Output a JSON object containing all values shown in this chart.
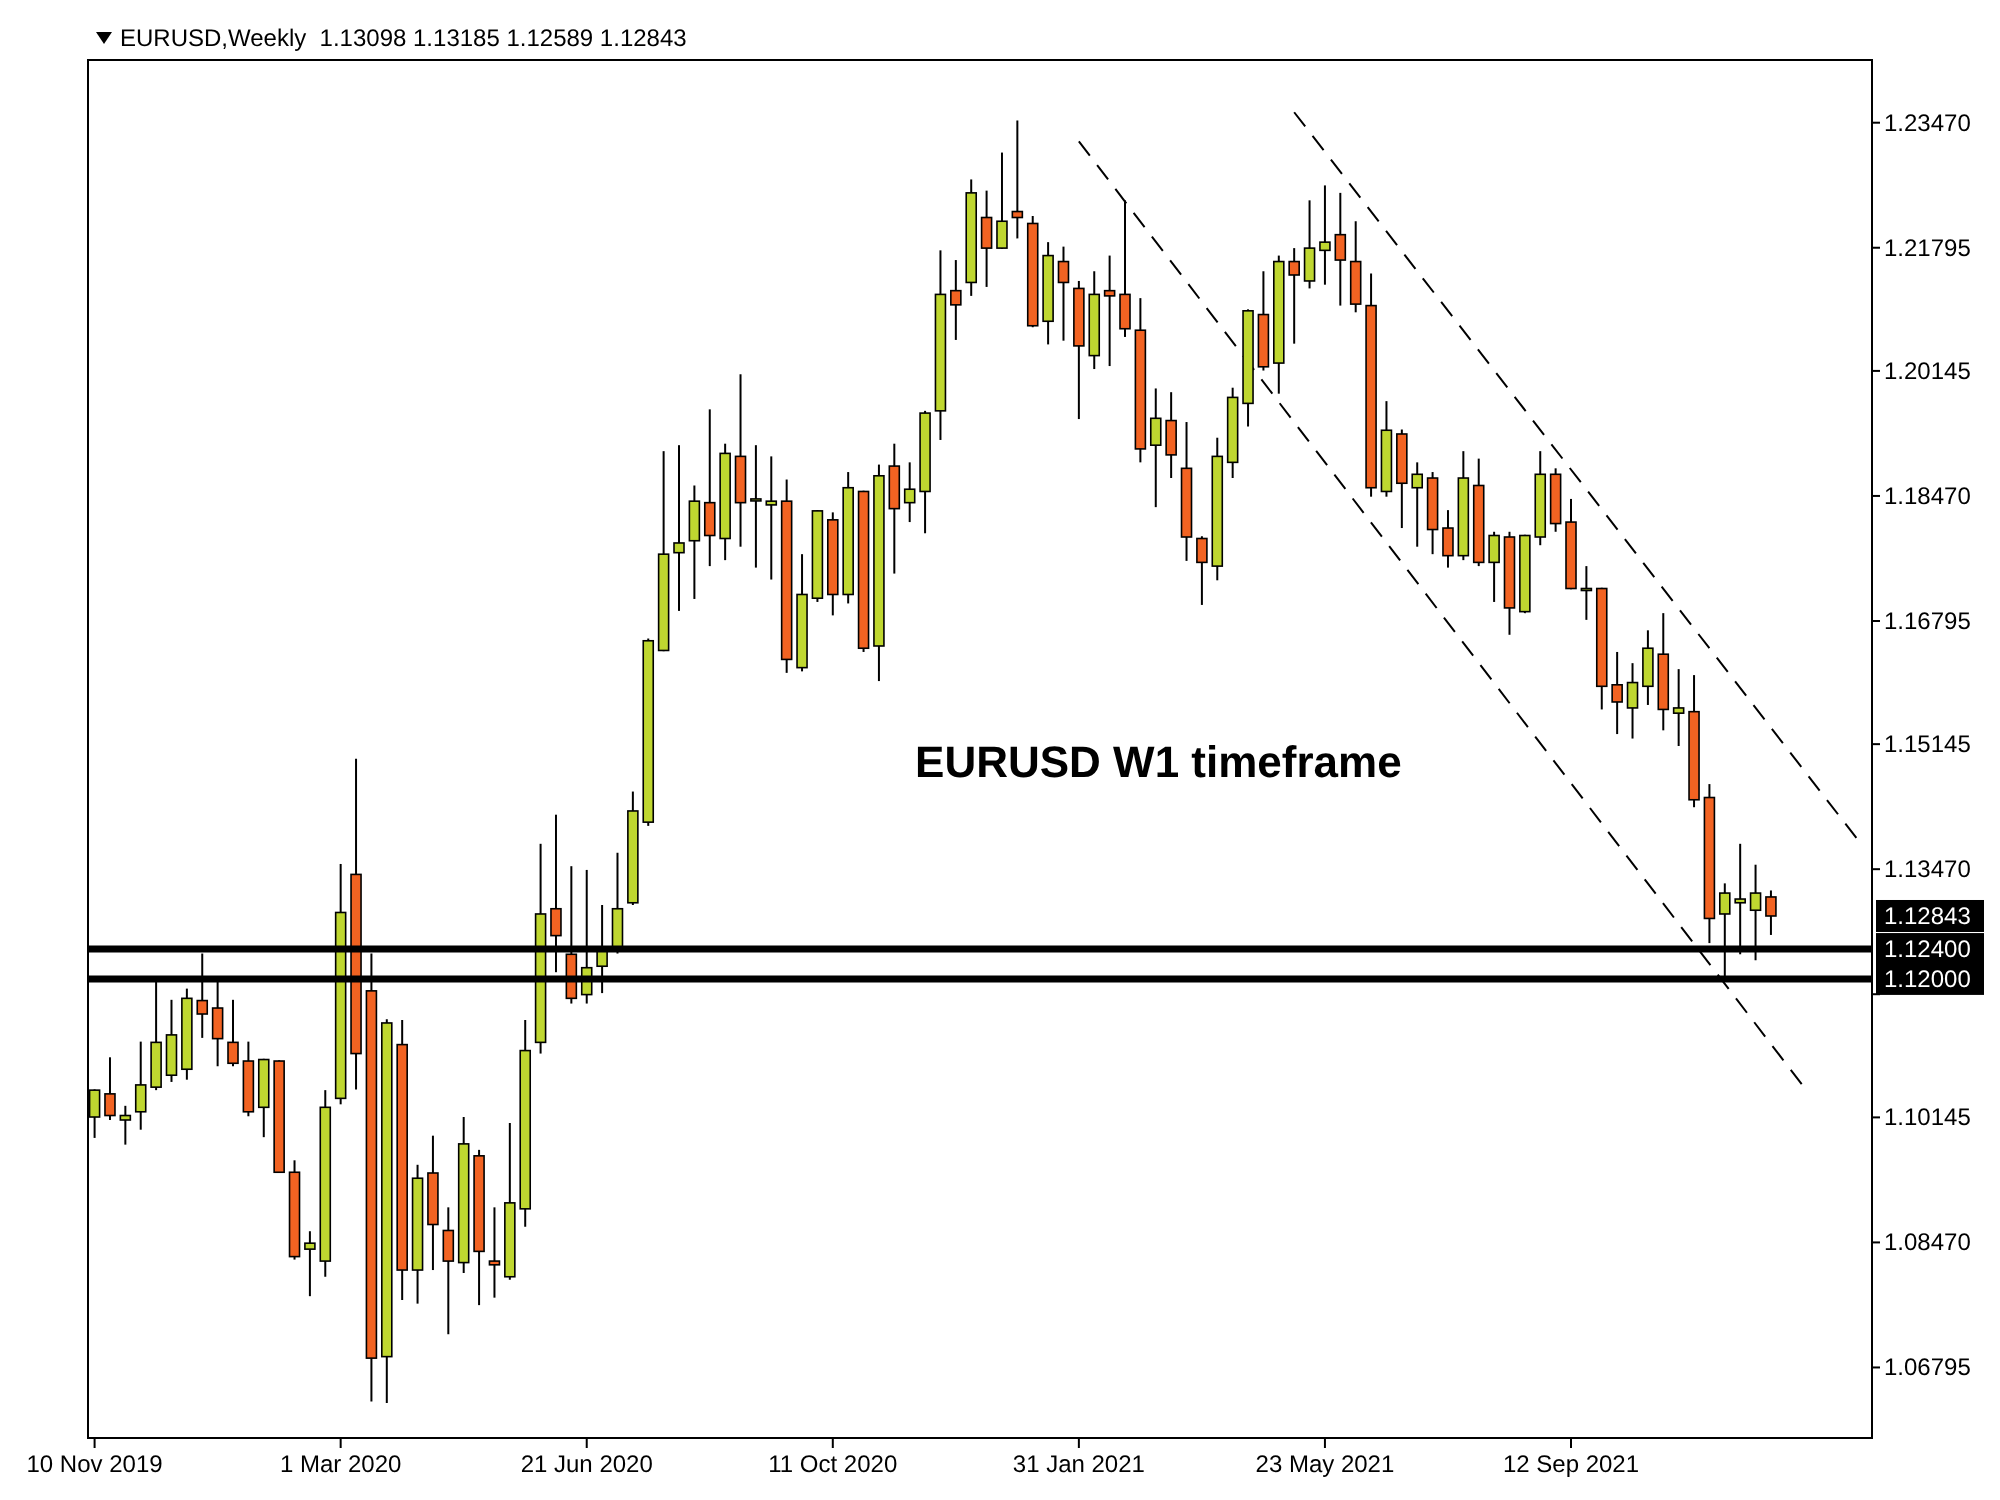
{
  "chart_data": {
    "type": "candlestick",
    "title": "EURUSD,Weekly  1.13098 1.13185 1.12589 1.12843",
    "x": [
      "2019-11-10",
      "2019-11-17",
      "2019-11-24",
      "2019-12-01",
      "2019-12-08",
      "2019-12-15",
      "2019-12-22",
      "2019-12-29",
      "2020-01-05",
      "2020-01-12",
      "2020-01-19",
      "2020-01-26",
      "2020-02-02",
      "2020-02-09",
      "2020-02-16",
      "2020-02-23",
      "2020-03-01",
      "2020-03-08",
      "2020-03-15",
      "2020-03-22",
      "2020-03-29",
      "2020-04-05",
      "2020-04-12",
      "2020-04-19",
      "2020-04-26",
      "2020-05-03",
      "2020-05-10",
      "2020-05-17",
      "2020-05-24",
      "2020-05-31",
      "2020-06-07",
      "2020-06-14",
      "2020-06-21",
      "2020-06-28",
      "2020-07-05",
      "2020-07-12",
      "2020-07-19",
      "2020-07-26",
      "2020-08-02",
      "2020-08-09",
      "2020-08-16",
      "2020-08-23",
      "2020-08-30",
      "2020-09-06",
      "2020-09-13",
      "2020-09-20",
      "2020-09-27",
      "2020-10-04",
      "2020-10-11",
      "2020-10-18",
      "2020-10-25",
      "2020-11-01",
      "2020-11-08",
      "2020-11-15",
      "2020-11-22",
      "2020-11-29",
      "2020-12-06",
      "2020-12-13",
      "2020-12-20",
      "2020-12-27",
      "2021-01-03",
      "2021-01-10",
      "2021-01-17",
      "2021-01-24",
      "2021-01-31",
      "2021-02-07",
      "2021-02-14",
      "2021-02-21",
      "2021-02-28",
      "2021-03-07",
      "2021-03-14",
      "2021-03-21",
      "2021-03-28",
      "2021-04-04",
      "2021-04-11",
      "2021-04-18",
      "2021-04-25",
      "2021-05-02",
      "2021-05-09",
      "2021-05-16",
      "2021-05-23",
      "2021-05-30",
      "2021-06-06",
      "2021-06-13",
      "2021-06-20",
      "2021-06-27",
      "2021-07-04",
      "2021-07-11",
      "2021-07-18",
      "2021-07-25",
      "2021-08-01",
      "2021-08-08",
      "2021-08-15",
      "2021-08-22",
      "2021-08-29",
      "2021-09-05",
      "2021-09-12",
      "2021-09-19",
      "2021-09-26",
      "2021-10-03",
      "2021-10-10",
      "2021-10-17",
      "2021-10-24",
      "2021-10-31",
      "2021-11-07",
      "2021-11-14",
      "2021-11-21",
      "2021-11-28",
      "2021-12-05",
      "2021-12-12"
    ],
    "ohlc": [
      [
        1.1015,
        1.1052,
        1.0987,
        1.1051
      ],
      [
        1.1046,
        1.1095,
        1.1011,
        1.1017
      ],
      [
        1.1011,
        1.103,
        1.0978,
        1.1017
      ],
      [
        1.1022,
        1.1116,
        1.0998,
        1.1058
      ],
      [
        1.1055,
        1.1196,
        1.1051,
        1.1115
      ],
      [
        1.1071,
        1.1172,
        1.1062,
        1.1125
      ],
      [
        1.1079,
        1.1187,
        1.1065,
        1.1174
      ],
      [
        1.1171,
        1.1234,
        1.1121,
        1.1153
      ],
      [
        1.1161,
        1.1196,
        1.1083,
        1.112
      ],
      [
        1.1115,
        1.1172,
        1.1083,
        1.1087
      ],
      [
        1.109,
        1.1116,
        1.1016,
        1.1022
      ],
      [
        1.1028,
        1.1093,
        1.0988,
        1.1092
      ],
      [
        1.109,
        1.1091,
        1.094,
        1.0941
      ],
      [
        1.0941,
        1.0957,
        1.0824,
        1.0828
      ],
      [
        1.0838,
        1.0862,
        1.0775,
        1.0846
      ],
      [
        1.0822,
        1.1051,
        1.0801,
        1.1028
      ],
      [
        1.104,
        1.1354,
        1.1032,
        1.1289
      ],
      [
        1.134,
        1.1495,
        1.1052,
        1.11
      ],
      [
        1.1184,
        1.1234,
        1.0634,
        1.0692
      ],
      [
        1.0694,
        1.1146,
        1.0632,
        1.1141
      ],
      [
        1.1112,
        1.1145,
        1.077,
        1.081
      ],
      [
        1.081,
        1.0951,
        1.0765,
        1.0933
      ],
      [
        1.094,
        1.099,
        1.081,
        1.0871
      ],
      [
        1.0863,
        1.0894,
        1.0724,
        1.0822
      ],
      [
        1.082,
        1.1015,
        1.0806,
        1.0979
      ],
      [
        1.0963,
        1.0971,
        1.0763,
        1.0835
      ],
      [
        1.0822,
        1.0894,
        1.0773,
        1.0817
      ],
      [
        1.0801,
        1.1007,
        1.0797,
        1.09
      ],
      [
        1.0892,
        1.1145,
        1.0868,
        1.1104
      ],
      [
        1.1115,
        1.1381,
        1.11,
        1.1287
      ],
      [
        1.1294,
        1.142,
        1.1209,
        1.1258
      ],
      [
        1.1233,
        1.1351,
        1.1167,
        1.1174
      ],
      [
        1.1179,
        1.1346,
        1.1167,
        1.1215
      ],
      [
        1.1217,
        1.1299,
        1.1181,
        1.1239
      ],
      [
        1.1239,
        1.1369,
        1.1234,
        1.1294
      ],
      [
        1.1302,
        1.1451,
        1.1299,
        1.1425
      ],
      [
        1.141,
        1.1656,
        1.1405,
        1.1653
      ],
      [
        1.164,
        1.1907,
        1.1639,
        1.1769
      ],
      [
        1.1771,
        1.1915,
        1.1693,
        1.1784
      ],
      [
        1.1787,
        1.1861,
        1.1709,
        1.184
      ],
      [
        1.1838,
        1.1963,
        1.1753,
        1.1794
      ],
      [
        1.179,
        1.1917,
        1.1761,
        1.1904
      ],
      [
        1.19,
        1.201,
        1.1779,
        1.1838
      ],
      [
        1.1843,
        1.1915,
        1.1751,
        1.1843
      ],
      [
        1.1835,
        1.19,
        1.1735,
        1.184
      ],
      [
        1.184,
        1.1869,
        1.161,
        1.1628
      ],
      [
        1.1617,
        1.1769,
        1.1612,
        1.1715
      ],
      [
        1.171,
        1.1828,
        1.1705,
        1.1827
      ],
      [
        1.1815,
        1.1825,
        1.1687,
        1.1715
      ],
      [
        1.1715,
        1.1879,
        1.1703,
        1.1858
      ],
      [
        1.1853,
        1.1854,
        1.1638,
        1.1643
      ],
      [
        1.1646,
        1.1889,
        1.1599,
        1.1874
      ],
      [
        1.1887,
        1.1917,
        1.1743,
        1.183
      ],
      [
        1.1838,
        1.1892,
        1.1812,
        1.1856
      ],
      [
        1.1853,
        1.1961,
        1.1797,
        1.1958
      ],
      [
        1.1961,
        1.2176,
        1.1922,
        1.2117
      ],
      [
        1.2122,
        1.2163,
        1.2056,
        1.2103
      ],
      [
        1.2133,
        1.2271,
        1.2115,
        1.2253
      ],
      [
        1.222,
        1.2256,
        1.2127,
        1.2179
      ],
      [
        1.2179,
        1.2307,
        1.2178,
        1.2215
      ],
      [
        1.2228,
        1.235,
        1.2192,
        1.222
      ],
      [
        1.2212,
        1.2222,
        1.2073,
        1.2075
      ],
      [
        1.2081,
        1.2187,
        1.205,
        1.2169
      ],
      [
        1.2161,
        1.2181,
        1.2055,
        1.2133
      ],
      [
        1.2125,
        1.2135,
        1.195,
        1.2048
      ],
      [
        1.2035,
        1.2148,
        1.2017,
        1.2117
      ],
      [
        1.2122,
        1.2169,
        1.2021,
        1.2115
      ],
      [
        1.2117,
        1.2243,
        1.206,
        1.2071
      ],
      [
        1.2069,
        1.2112,
        1.1892,
        1.191
      ],
      [
        1.1915,
        1.1991,
        1.1832,
        1.1951
      ],
      [
        1.1948,
        1.1986,
        1.1871,
        1.1902
      ],
      [
        1.1884,
        1.1946,
        1.176,
        1.1792
      ],
      [
        1.179,
        1.1793,
        1.1701,
        1.1758
      ],
      [
        1.1753,
        1.1925,
        1.1734,
        1.19
      ],
      [
        1.1892,
        1.1992,
        1.1871,
        1.1979
      ],
      [
        1.1971,
        1.2097,
        1.194,
        1.2095
      ],
      [
        1.209,
        1.2148,
        1.2015,
        1.202
      ],
      [
        1.2025,
        1.2169,
        1.1984,
        1.2161
      ],
      [
        1.2161,
        1.2179,
        1.2051,
        1.2143
      ],
      [
        1.2135,
        1.2243,
        1.2125,
        1.2179
      ],
      [
        1.2176,
        1.2263,
        1.213,
        1.2187
      ],
      [
        1.2197,
        1.2253,
        1.2102,
        1.2163
      ],
      [
        1.2161,
        1.2215,
        1.2093,
        1.2104
      ],
      [
        1.2102,
        1.2145,
        1.1846,
        1.1858
      ],
      [
        1.1853,
        1.1974,
        1.1846,
        1.1935
      ],
      [
        1.193,
        1.1936,
        1.1804,
        1.1864
      ],
      [
        1.1858,
        1.1892,
        1.1779,
        1.1876
      ],
      [
        1.1871,
        1.1879,
        1.1769,
        1.1802
      ],
      [
        1.1804,
        1.1828,
        1.1751,
        1.1767
      ],
      [
        1.1767,
        1.1907,
        1.1761,
        1.1871
      ],
      [
        1.1861,
        1.1897,
        1.1753,
        1.1758
      ],
      [
        1.1758,
        1.1799,
        1.1705,
        1.1794
      ],
      [
        1.1792,
        1.1799,
        1.1661,
        1.1697
      ],
      [
        1.1692,
        1.1795,
        1.169,
        1.1794
      ],
      [
        1.1792,
        1.1907,
        1.1781,
        1.1876
      ],
      [
        1.1876,
        1.1884,
        1.1799,
        1.181
      ],
      [
        1.1812,
        1.1843,
        1.1722,
        1.1723
      ],
      [
        1.1723,
        1.1753,
        1.1681,
        1.1723
      ],
      [
        1.1723,
        1.1724,
        1.1561,
        1.1592
      ],
      [
        1.1594,
        1.1638,
        1.1528,
        1.1571
      ],
      [
        1.1563,
        1.1623,
        1.1522,
        1.1597
      ],
      [
        1.1592,
        1.1667,
        1.1567,
        1.1643
      ],
      [
        1.1635,
        1.169,
        1.1533,
        1.1561
      ],
      [
        1.1556,
        1.1615,
        1.1512,
        1.1563
      ],
      [
        1.1558,
        1.1607,
        1.143,
        1.144
      ],
      [
        1.1443,
        1.1461,
        1.1248,
        1.1281
      ],
      [
        1.1287,
        1.1328,
        1.1196,
        1.1315
      ],
      [
        1.1302,
        1.1381,
        1.1233,
        1.1307
      ],
      [
        1.1292,
        1.1353,
        1.1225,
        1.1315
      ],
      [
        1.13098,
        1.13185,
        1.12589,
        1.12843
      ]
    ],
    "colors": [
      "#bfd730",
      "#f26322",
      "#bfd730",
      "#bfd730",
      "#bfd730",
      "#bfd730",
      "#bfd730",
      "#f26322",
      "#f26322",
      "#f26322",
      "#f26322",
      "#bfd730",
      "#f26322",
      "#f26322",
      "#bfd730",
      "#bfd730",
      "#bfd730",
      "#f26322",
      "#f26322",
      "#bfd730",
      "#f26322",
      "#bfd730",
      "#f26322",
      "#f26322",
      "#bfd730",
      "#f26322",
      "#f26322",
      "#bfd730",
      "#bfd730",
      "#bfd730",
      "#f26322",
      "#f26322",
      "#bfd730",
      "#bfd730",
      "#bfd730",
      "#bfd730",
      "#bfd730",
      "#bfd730",
      "#bfd730",
      "#bfd730",
      "#f26322",
      "#bfd730",
      "#f26322",
      "#bfd730",
      "#bfd730",
      "#f26322",
      "#bfd730",
      "#bfd730",
      "#f26322",
      "#bfd730",
      "#f26322",
      "#bfd730",
      "#f26322",
      "#bfd730",
      "#bfd730",
      "#bfd730",
      "#f26322",
      "#bfd730",
      "#f26322",
      "#bfd730",
      "#f26322",
      "#f26322",
      "#bfd730",
      "#f26322",
      "#f26322",
      "#bfd730",
      "#f26322",
      "#f26322",
      "#f26322",
      "#bfd730",
      "#f26322",
      "#f26322",
      "#f26322",
      "#bfd730",
      "#bfd730",
      "#bfd730",
      "#f26322",
      "#bfd730",
      "#f26322",
      "#bfd730",
      "#bfd730",
      "#f26322",
      "#f26322",
      "#f26322",
      "#bfd730",
      "#f26322",
      "#bfd730",
      "#f26322",
      "#f26322",
      "#bfd730",
      "#f26322",
      "#bfd730",
      "#f26322",
      "#bfd730",
      "#bfd730",
      "#f26322",
      "#f26322",
      "#bfd730",
      "#f26322",
      "#f26322",
      "#bfd730",
      "#bfd730",
      "#f26322",
      "#bfd730",
      "#f26322",
      "#f26322",
      "#bfd730",
      "#bfd730",
      "#bfd730",
      "#f26322"
    ],
    "series": [
      {
        "type": "line",
        "color": "#000000",
        "line_style": "dashed",
        "x": [
          "2021-01-31",
          "2021-12-26"
        ],
        "values": [
          1.2322,
          1.1059
        ]
      },
      {
        "type": "line",
        "color": "#000000",
        "line_style": "dashed",
        "x": [
          "2021-05-09",
          "2022-01-23"
        ],
        "values": [
          1.2361,
          1.1377
        ]
      }
    ],
    "xlim": [
      "2019-11-07",
      "2022-01-27"
    ],
    "xticks": [
      {
        "value": "2019-11-10",
        "label": "10 Nov 2019"
      },
      {
        "value": "2020-03-01",
        "label": "1 Mar 2020"
      },
      {
        "value": "2020-06-21",
        "label": "21 Jun 2020"
      },
      {
        "value": "2020-10-11",
        "label": "11 Oct 2020"
      },
      {
        "value": "2021-01-31",
        "label": "31 Jan 2021"
      },
      {
        "value": "2021-05-23",
        "label": "23 May 2021"
      },
      {
        "value": "2021-09-12",
        "label": "12 Sep 2021"
      }
    ],
    "ylim": [
      1.0585,
      1.2431
    ],
    "yticks": [
      1.06795,
      {
        "value": 1.0847,
        "label": "1.08470"
      },
      1.10145,
      {
        "value": 1.11795,
        "label": null
      },
      {
        "value": 1.1347,
        "label": "1.13470"
      },
      1.15145,
      1.16795,
      {
        "value": 1.1847,
        "label": "1.18470"
      },
      1.20145,
      1.21795,
      {
        "value": 1.2347,
        "label": "1.23470"
      }
    ],
    "ref_lines": [
      {
        "axis": "y",
        "value": 1.124,
        "label": "1.12400",
        "color": "#000000"
      },
      {
        "axis": "y",
        "value": 1.12,
        "label": "1.12000",
        "color": "#000000"
      }
    ],
    "annotations": [
      "EURUSD W1 timeframe",
      "1.12843"
    ],
    "grid": false
  }
}
